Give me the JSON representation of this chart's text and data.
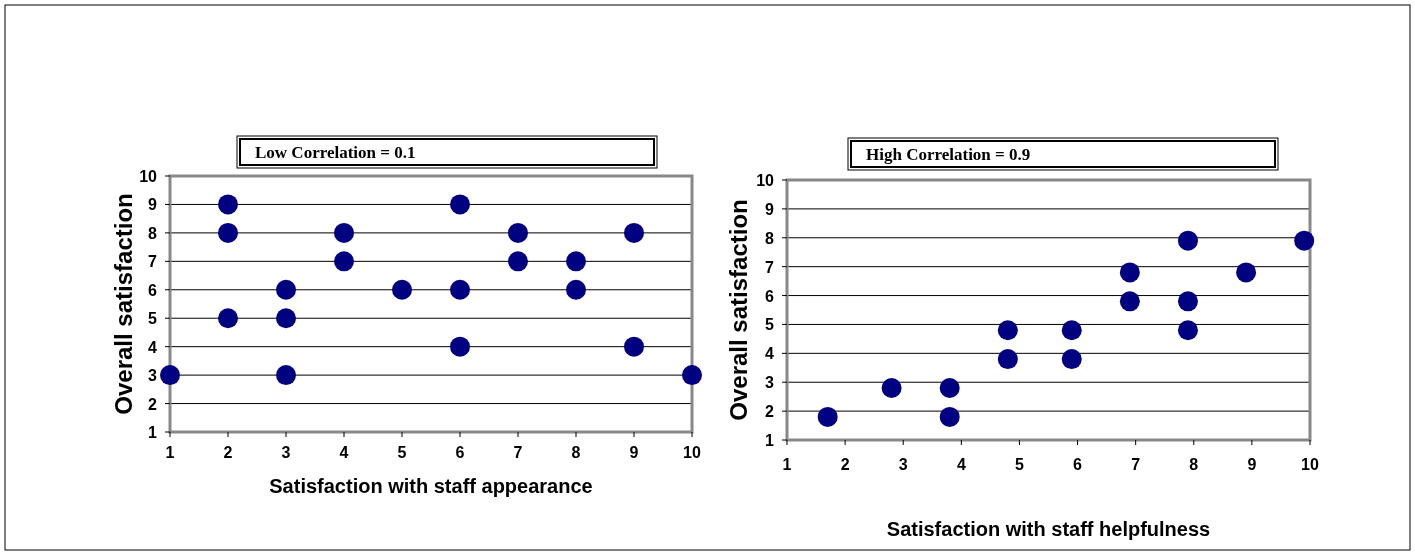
{
  "chart_data": [
    {
      "type": "scatter",
      "title": "Low Correlation = 0.1",
      "xlabel": "Satisfaction with staff appearance",
      "ylabel": "Overall satisfaction",
      "xlim": [
        1,
        10
      ],
      "ylim": [
        1,
        10
      ],
      "xticks": [
        1,
        2,
        3,
        4,
        5,
        6,
        7,
        8,
        9,
        10
      ],
      "yticks": [
        1,
        2,
        3,
        4,
        5,
        6,
        7,
        8,
        9,
        10
      ],
      "grid": "y",
      "marker": "circle",
      "series": [
        {
          "color": "#000080",
          "x": [
            1,
            2,
            2,
            2,
            3,
            3,
            3,
            4,
            4,
            5,
            6,
            6,
            6,
            7,
            7,
            8,
            8,
            9,
            9,
            10
          ],
          "values": [
            3,
            9,
            8,
            5,
            6,
            5,
            3,
            8,
            7,
            6,
            9,
            6,
            4,
            8,
            7,
            7,
            6,
            8,
            4,
            3
          ]
        }
      ]
    },
    {
      "type": "scatter",
      "title": "High Correlation = 0.9",
      "xlabel": "Satisfaction with staff helpfulness",
      "ylabel": "Overall satisfaction",
      "xlim": [
        1,
        10
      ],
      "ylim": [
        1,
        10
      ],
      "xticks": [
        1,
        2,
        3,
        4,
        5,
        6,
        7,
        8,
        9,
        10
      ],
      "yticks": [
        1,
        2,
        3,
        4,
        5,
        6,
        7,
        8,
        9,
        10
      ],
      "grid": "y",
      "marker": "circle",
      "series": [
        {
          "color": "#000080",
          "x": [
            1.7,
            2.8,
            3.8,
            3.8,
            4.8,
            4.8,
            5.9,
            5.9,
            6.9,
            6.9,
            7.9,
            7.9,
            7.9,
            8.9,
            9.9
          ],
          "values": [
            1.8,
            2.8,
            2.8,
            1.8,
            4.8,
            3.8,
            4.8,
            3.8,
            6.8,
            5.8,
            7.9,
            5.8,
            4.8,
            6.8,
            7.9
          ]
        }
      ]
    }
  ]
}
